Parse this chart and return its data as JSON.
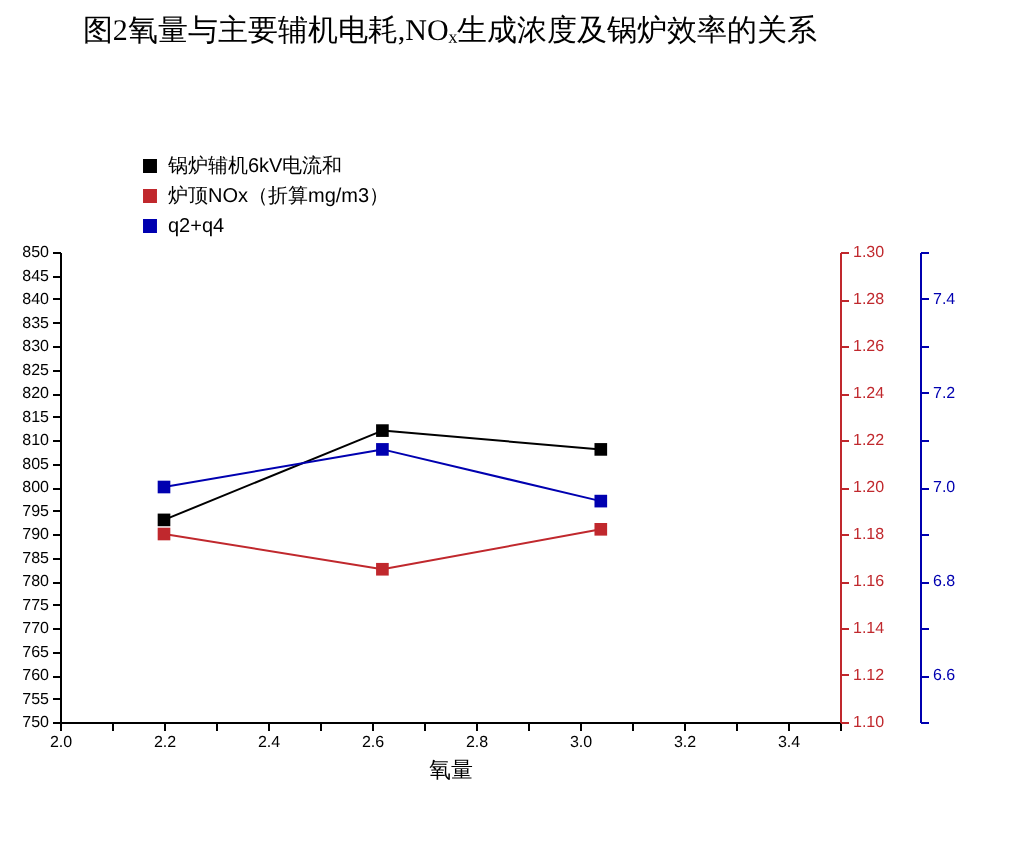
{
  "chart_data": {
    "type": "line",
    "title": "图2氧量与主要辅机电耗,NOₓ生成浓度及锅炉效率的关系",
    "xlabel": "氧量",
    "xlim": [
      2.0,
      3.5
    ],
    "xticks": [
      {
        "value": 2.0,
        "label": "2.0"
      },
      {
        "value": 2.1,
        "label": null
      },
      {
        "value": 2.2,
        "label": "2.2"
      },
      {
        "value": 2.3,
        "label": null
      },
      {
        "value": 2.4,
        "label": "2.4"
      },
      {
        "value": 2.5,
        "label": null
      },
      {
        "value": 2.6,
        "label": "2.6"
      },
      {
        "value": 2.7,
        "label": null
      },
      {
        "value": 2.8,
        "label": "2.8"
      },
      {
        "value": 2.9,
        "label": null
      },
      {
        "value": 3.0,
        "label": "3.0"
      },
      {
        "value": 3.1,
        "label": null
      },
      {
        "value": 3.2,
        "label": "3.2"
      },
      {
        "value": 3.3,
        "label": null
      },
      {
        "value": 3.4,
        "label": "3.4"
      },
      {
        "value": 3.5,
        "label": null
      }
    ],
    "x": [
      2.2,
      2.62,
      3.04
    ],
    "ylim": [
      750,
      850
    ],
    "yticks": [
      750,
      755,
      760,
      765,
      770,
      775,
      780,
      785,
      790,
      795,
      800,
      805,
      810,
      815,
      820,
      825,
      830,
      835,
      840,
      845,
      850
    ],
    "y2lim": [
      1.1,
      1.3
    ],
    "y2ticks": [
      {
        "value": 1.1,
        "label": "1.10"
      },
      1.12,
      1.14,
      1.16,
      1.18,
      {
        "value": 1.2,
        "label": "1.20"
      },
      1.22,
      1.24,
      1.26,
      1.28,
      {
        "value": 1.3,
        "label": "1.30"
      }
    ],
    "y3lim": [
      6.5,
      7.5
    ],
    "y3ticks": [
      {
        "value": 6.5,
        "label": null
      },
      6.6,
      {
        "value": 6.7,
        "label": null
      },
      6.8,
      {
        "value": 6.9,
        "label": null
      },
      {
        "value": 7.0,
        "label": "7.0"
      },
      {
        "value": 7.1,
        "label": null
      },
      7.2,
      {
        "value": 7.3,
        "label": null
      },
      7.4,
      {
        "value": 7.5,
        "label": null
      }
    ],
    "series": [
      {
        "name": "锅炉辅机6kV电流和",
        "color": "#000000",
        "values": [
          793,
          812,
          808
        ]
      },
      {
        "name": "炉顶NOx（折算mg/m3）",
        "color": "#c0282d",
        "axis": "y2",
        "values": [
          1.18,
          1.165,
          1.182
        ]
      },
      {
        "name": "q2+q4",
        "color": "#0000b0",
        "axis": "y3",
        "values": [
          7.0,
          7.08,
          6.97
        ]
      }
    ],
    "marker": "square",
    "line_style": "solid",
    "grid": false,
    "legend": "top left"
  }
}
